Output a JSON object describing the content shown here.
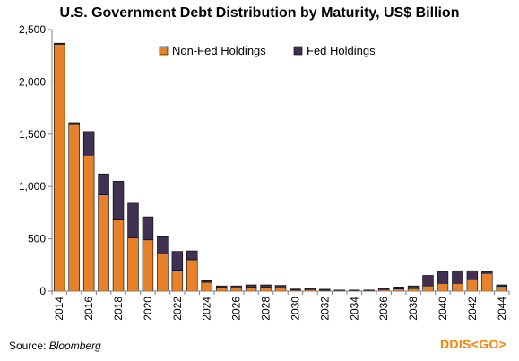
{
  "chart_data": {
    "type": "bar",
    "stacked": true,
    "title": "U.S. Government Debt Distribution by Maturity, US$ Billion",
    "categories": [
      "2014",
      "2015",
      "2016",
      "2017",
      "2018",
      "2019",
      "2020",
      "2021",
      "2022",
      "2023",
      "2024",
      "2025",
      "2026",
      "2027",
      "2028",
      "2029",
      "2030",
      "2031",
      "2032",
      "2033",
      "2034",
      "2035",
      "2036",
      "2037",
      "2038",
      "2039",
      "2040",
      "2041",
      "2042",
      "2043",
      "2044"
    ],
    "x_tick_labels": [
      "2014",
      "2016",
      "2018",
      "2020",
      "2022",
      "2024",
      "2026",
      "2028",
      "2030",
      "2032",
      "2034",
      "2036",
      "2038",
      "2040",
      "2042",
      "2044"
    ],
    "series": [
      {
        "name": "Non-Fed Holdings",
        "color": "#e8822a",
        "values": [
          2360,
          1600,
          1300,
          920,
          680,
          510,
          490,
          355,
          200,
          300,
          85,
          35,
          30,
          35,
          35,
          30,
          10,
          15,
          8,
          5,
          5,
          5,
          15,
          20,
          25,
          50,
          75,
          75,
          110,
          170,
          45
        ]
      },
      {
        "name": "Fed Holdings",
        "color": "#403152",
        "values": [
          10,
          10,
          225,
          200,
          370,
          330,
          220,
          165,
          180,
          85,
          15,
          15,
          20,
          25,
          25,
          25,
          10,
          10,
          10,
          5,
          5,
          5,
          10,
          20,
          25,
          100,
          110,
          120,
          85,
          15,
          15
        ]
      }
    ],
    "ylim": [
      0,
      2500
    ],
    "y_ticks": [
      "0",
      "500",
      "1,000",
      "1,500",
      "2,000",
      "2,500"
    ],
    "y_tick_values": [
      0,
      500,
      1000,
      1500,
      2000,
      2500
    ],
    "grid": false,
    "legend": "top-center"
  },
  "footer": {
    "source_label": "Source:",
    "source_name": "Bloomberg",
    "brand": "DDIS<GO>"
  }
}
